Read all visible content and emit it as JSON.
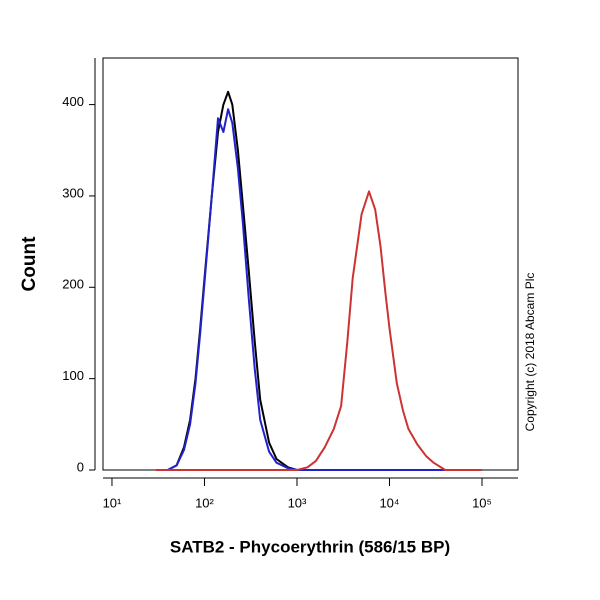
{
  "chart_data": {
    "type": "line",
    "xlabel": "SATB2 - Phycoerythrin (586/15 BP)",
    "ylabel": "Count",
    "note": "Copyright (c) 2018 Abcam Plc",
    "xscale": "log",
    "xlim": [
      8,
      245000
    ],
    "ylim": [
      0,
      451
    ],
    "xticks": [
      {
        "value": 10,
        "label": "10¹"
      },
      {
        "value": 100,
        "label": "10²"
      },
      {
        "value": 1000,
        "label": "10³"
      },
      {
        "value": 10000,
        "label": "10⁴"
      },
      {
        "value": 100000,
        "label": "10⁵"
      }
    ],
    "yticks": [
      0,
      100,
      200,
      300,
      400
    ],
    "x": [
      30,
      40,
      50,
      60,
      70,
      80,
      90,
      100,
      120,
      140,
      160,
      180,
      200,
      230,
      260,
      300,
      350,
      400,
      500,
      600,
      800,
      1000,
      1300,
      1600,
      2000,
      2500,
      3000,
      3500,
      4000,
      5000,
      6000,
      7000,
      8000,
      9000,
      10000,
      12000,
      14000,
      16000,
      20000,
      25000,
      30000,
      40000,
      50000,
      100000
    ],
    "series": [
      {
        "color": "#000000",
        "values": [
          0,
          0,
          5,
          25,
          55,
          100,
          155,
          210,
          300,
          370,
          400,
          414,
          400,
          350,
          290,
          220,
          140,
          77,
          30,
          12,
          3,
          0,
          0,
          0,
          0,
          0,
          0,
          0,
          0,
          0,
          0,
          0,
          0,
          0,
          0,
          0,
          0,
          0,
          0,
          0,
          0,
          0,
          0,
          0
        ]
      },
      {
        "color": "#2222cc",
        "values": [
          0,
          0,
          5,
          22,
          50,
          95,
          150,
          205,
          300,
          385,
          370,
          395,
          380,
          330,
          270,
          190,
          110,
          55,
          20,
          8,
          2,
          0,
          0,
          0,
          0,
          0,
          0,
          0,
          0,
          0,
          0,
          0,
          0,
          0,
          0,
          0,
          0,
          0,
          0,
          0,
          0,
          0,
          0,
          0
        ]
      },
      {
        "color": "#cc3333",
        "values": [
          0,
          0,
          0,
          0,
          0,
          0,
          0,
          0,
          0,
          0,
          0,
          0,
          0,
          0,
          0,
          0,
          0,
          0,
          0,
          0,
          0,
          0,
          3,
          10,
          25,
          45,
          70,
          140,
          210,
          280,
          305,
          285,
          245,
          195,
          155,
          95,
          65,
          45,
          28,
          15,
          8,
          0,
          0,
          0
        ]
      }
    ]
  }
}
